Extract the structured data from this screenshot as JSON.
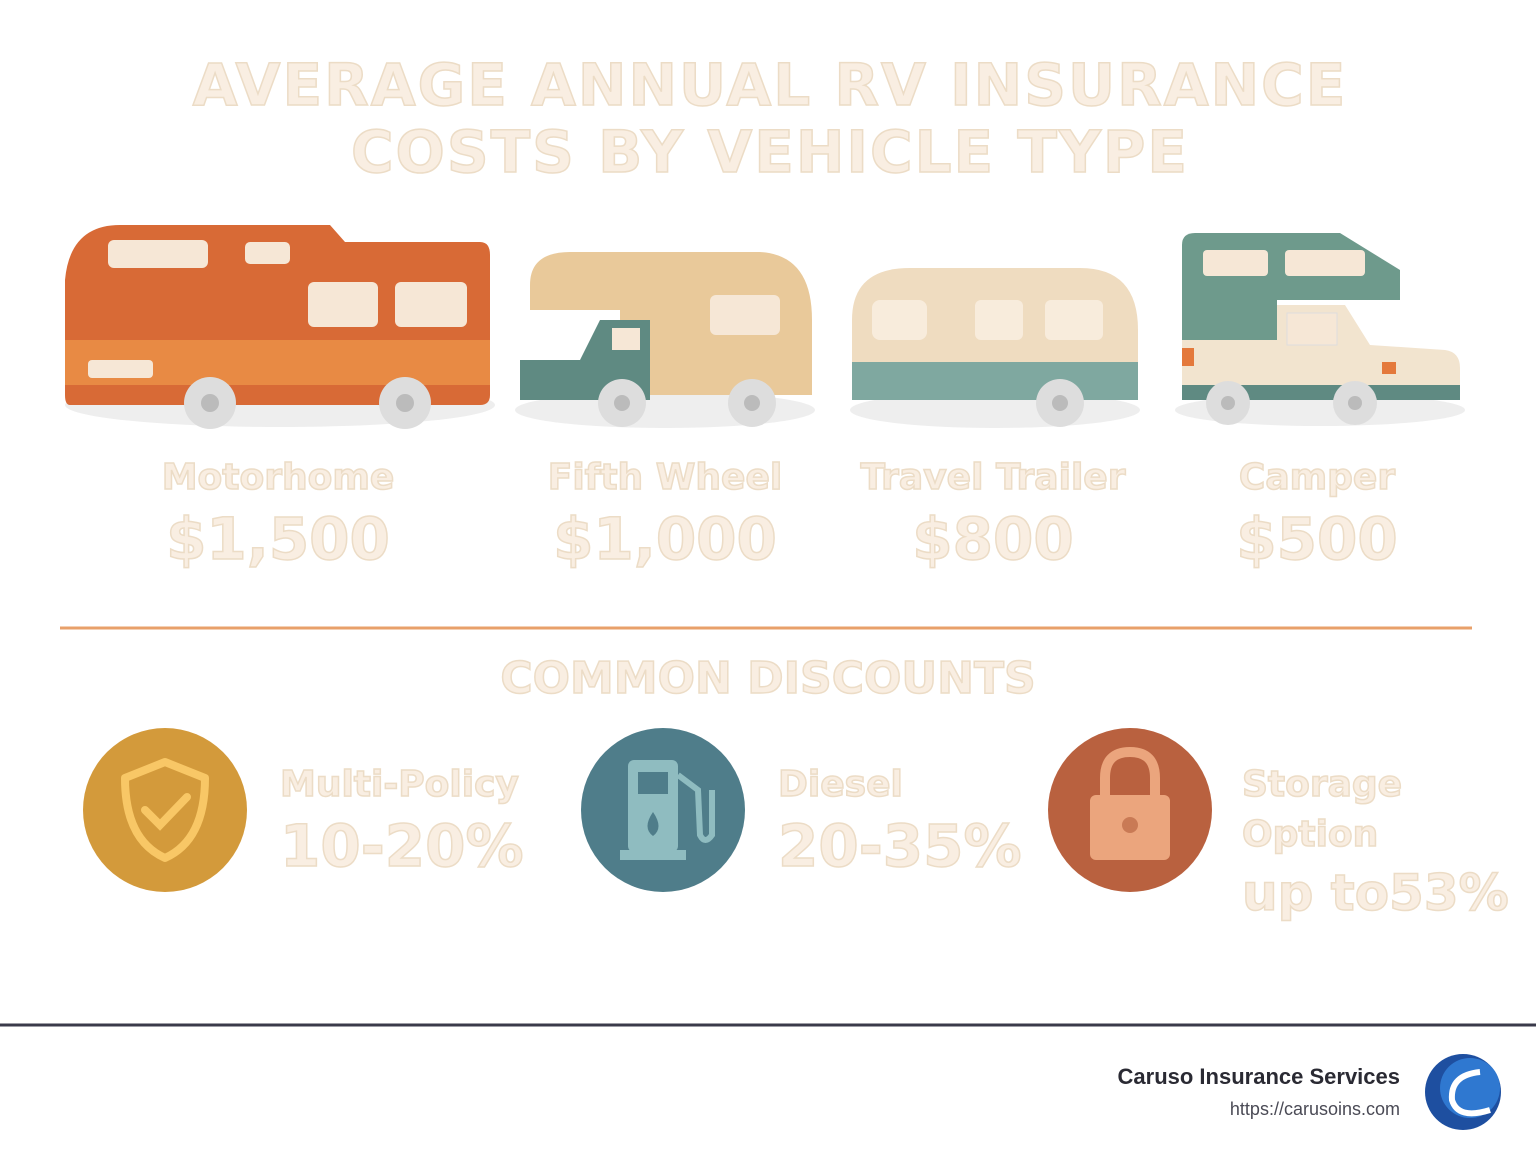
{
  "header": {
    "title": "AVERAGE ANNUAL RV INSURANCE COSTS BY VEHICLE TYPE"
  },
  "vehicles": [
    {
      "label": "Motorhome",
      "cost": "$1,500"
    },
    {
      "label": "Fifth Wheel",
      "cost": "$1,000"
    },
    {
      "label": "Travel Trailer",
      "cost": "$800"
    },
    {
      "label": "Camper",
      "cost": "$500"
    }
  ],
  "discounts": {
    "heading": "COMMON DISCOUNTS",
    "items": [
      {
        "label": "Multi-Policy",
        "value": "10-20%"
      },
      {
        "label": "Diesel",
        "value": "20-35%"
      },
      {
        "label": "Storage Option",
        "value": "up to53%"
      }
    ]
  },
  "footer": {
    "company": "Caruso Insurance Services",
    "url": "https://carusoins.com"
  }
}
